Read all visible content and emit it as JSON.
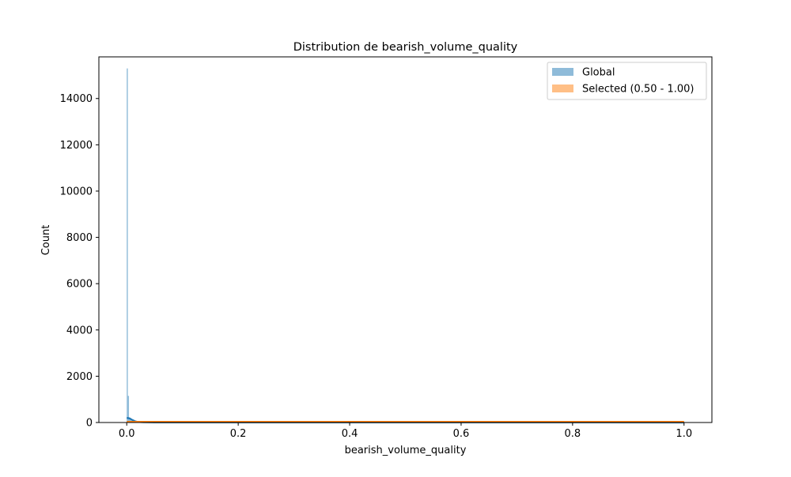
{
  "chart_data": {
    "type": "histogram",
    "title": "Distribution de bearish_volume_quality",
    "xlabel": "bearish_volume_quality",
    "ylabel": "Count",
    "xlim": [
      -0.05,
      1.05
    ],
    "ylim": [
      0,
      15800
    ],
    "xticks": [
      0.0,
      0.2,
      0.4,
      0.6,
      0.8,
      1.0
    ],
    "xtick_labels": [
      "0.0",
      "0.2",
      "0.4",
      "0.6",
      "0.8",
      "1.0"
    ],
    "yticks": [
      0,
      2000,
      4000,
      6000,
      8000,
      10000,
      12000,
      14000
    ],
    "ytick_labels": [
      "0",
      "2000",
      "4000",
      "6000",
      "8000",
      "10000",
      "12000",
      "14000"
    ],
    "grid": false,
    "legend_position": "top-right",
    "colors": {
      "Global": "#1f77b4",
      "Selected (0.50 - 1.00)": "#ff7f0e"
    },
    "series": [
      {
        "name": "Global",
        "bars": [
          {
            "x0": 0.0,
            "x1": 0.002,
            "count": 15300
          },
          {
            "x0": 0.002,
            "x1": 0.004,
            "count": 1150
          },
          {
            "x0": 0.004,
            "x1": 0.008,
            "count": 160
          },
          {
            "x0": 0.008,
            "x1": 0.015,
            "count": 80
          },
          {
            "x0": 0.015,
            "x1": 0.03,
            "count": 30
          },
          {
            "x0": 0.03,
            "x1": 0.1,
            "count": 8
          }
        ],
        "kde": [
          [
            0.0,
            200
          ],
          [
            0.005,
            180
          ],
          [
            0.01,
            110
          ],
          [
            0.015,
            55
          ],
          [
            0.02,
            25
          ],
          [
            0.03,
            10
          ],
          [
            0.05,
            4
          ],
          [
            1.0,
            1
          ]
        ]
      },
      {
        "name": "Selected (0.50 - 1.00)",
        "bars": [
          {
            "x0": 0.0,
            "x1": 1.0,
            "count": 20
          }
        ],
        "kde": [
          [
            0.0,
            30
          ],
          [
            0.1,
            30
          ],
          [
            0.5,
            30
          ],
          [
            1.0,
            30
          ]
        ]
      }
    ]
  }
}
